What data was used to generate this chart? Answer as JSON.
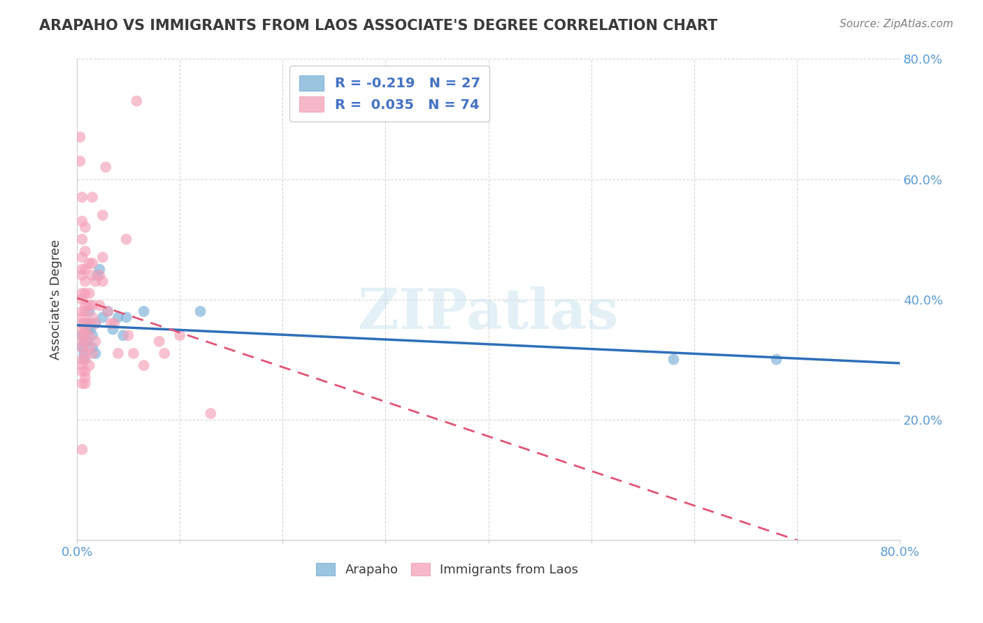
{
  "title": "ARAPAHO VS IMMIGRANTS FROM LAOS ASSOCIATE'S DEGREE CORRELATION CHART",
  "source": "Source: ZipAtlas.com",
  "ylabel": "Associate's Degree",
  "watermark": "ZIPatlas",
  "blue_scatter": [
    [
      0.005,
      0.34
    ],
    [
      0.005,
      0.32
    ],
    [
      0.007,
      0.36
    ],
    [
      0.007,
      0.33
    ],
    [
      0.007,
      0.31
    ],
    [
      0.007,
      0.3
    ],
    [
      0.01,
      0.35
    ],
    [
      0.01,
      0.33
    ],
    [
      0.012,
      0.38
    ],
    [
      0.012,
      0.36
    ],
    [
      0.013,
      0.35
    ],
    [
      0.015,
      0.34
    ],
    [
      0.015,
      0.32
    ],
    [
      0.018,
      0.36
    ],
    [
      0.018,
      0.31
    ],
    [
      0.02,
      0.44
    ],
    [
      0.022,
      0.45
    ],
    [
      0.025,
      0.37
    ],
    [
      0.03,
      0.38
    ],
    [
      0.035,
      0.35
    ],
    [
      0.04,
      0.37
    ],
    [
      0.045,
      0.34
    ],
    [
      0.048,
      0.37
    ],
    [
      0.065,
      0.38
    ],
    [
      0.12,
      0.38
    ],
    [
      0.58,
      0.3
    ],
    [
      0.68,
      0.3
    ]
  ],
  "pink_scatter": [
    [
      0.003,
      0.67
    ],
    [
      0.003,
      0.63
    ],
    [
      0.005,
      0.57
    ],
    [
      0.005,
      0.53
    ],
    [
      0.005,
      0.5
    ],
    [
      0.005,
      0.47
    ],
    [
      0.005,
      0.45
    ],
    [
      0.005,
      0.44
    ],
    [
      0.005,
      0.41
    ],
    [
      0.005,
      0.4
    ],
    [
      0.005,
      0.38
    ],
    [
      0.005,
      0.37
    ],
    [
      0.005,
      0.36
    ],
    [
      0.005,
      0.35
    ],
    [
      0.005,
      0.34
    ],
    [
      0.005,
      0.33
    ],
    [
      0.005,
      0.32
    ],
    [
      0.005,
      0.3
    ],
    [
      0.005,
      0.29
    ],
    [
      0.005,
      0.28
    ],
    [
      0.005,
      0.26
    ],
    [
      0.005,
      0.15
    ],
    [
      0.008,
      0.52
    ],
    [
      0.008,
      0.48
    ],
    [
      0.008,
      0.45
    ],
    [
      0.008,
      0.43
    ],
    [
      0.008,
      0.41
    ],
    [
      0.008,
      0.39
    ],
    [
      0.008,
      0.38
    ],
    [
      0.008,
      0.36
    ],
    [
      0.008,
      0.35
    ],
    [
      0.008,
      0.34
    ],
    [
      0.008,
      0.33
    ],
    [
      0.008,
      0.31
    ],
    [
      0.008,
      0.3
    ],
    [
      0.008,
      0.28
    ],
    [
      0.008,
      0.27
    ],
    [
      0.008,
      0.26
    ],
    [
      0.012,
      0.46
    ],
    [
      0.012,
      0.41
    ],
    [
      0.012,
      0.39
    ],
    [
      0.012,
      0.36
    ],
    [
      0.012,
      0.34
    ],
    [
      0.012,
      0.32
    ],
    [
      0.012,
      0.29
    ],
    [
      0.015,
      0.57
    ],
    [
      0.015,
      0.46
    ],
    [
      0.015,
      0.44
    ],
    [
      0.015,
      0.39
    ],
    [
      0.015,
      0.37
    ],
    [
      0.015,
      0.31
    ],
    [
      0.018,
      0.43
    ],
    [
      0.018,
      0.36
    ],
    [
      0.018,
      0.33
    ],
    [
      0.022,
      0.44
    ],
    [
      0.022,
      0.39
    ],
    [
      0.025,
      0.54
    ],
    [
      0.025,
      0.47
    ],
    [
      0.025,
      0.43
    ],
    [
      0.028,
      0.62
    ],
    [
      0.03,
      0.38
    ],
    [
      0.033,
      0.36
    ],
    [
      0.036,
      0.36
    ],
    [
      0.04,
      0.31
    ],
    [
      0.048,
      0.5
    ],
    [
      0.05,
      0.34
    ],
    [
      0.055,
      0.31
    ],
    [
      0.058,
      0.73
    ],
    [
      0.065,
      0.29
    ],
    [
      0.08,
      0.33
    ],
    [
      0.085,
      0.31
    ],
    [
      0.1,
      0.34
    ],
    [
      0.13,
      0.21
    ]
  ],
  "blue_color": "#7ab0d8",
  "pink_color": "#f4a0b8",
  "blue_line_color": "#2e6fba",
  "pink_line_color": "#e05575",
  "grid_color": "#d8d8d8",
  "background_color": "#ffffff",
  "title_color": "#3a3a3a",
  "source_color": "#808080",
  "tick_color": "#5b9bd5",
  "xlim": [
    0.0,
    0.8
  ],
  "ylim": [
    0.0,
    0.8
  ]
}
